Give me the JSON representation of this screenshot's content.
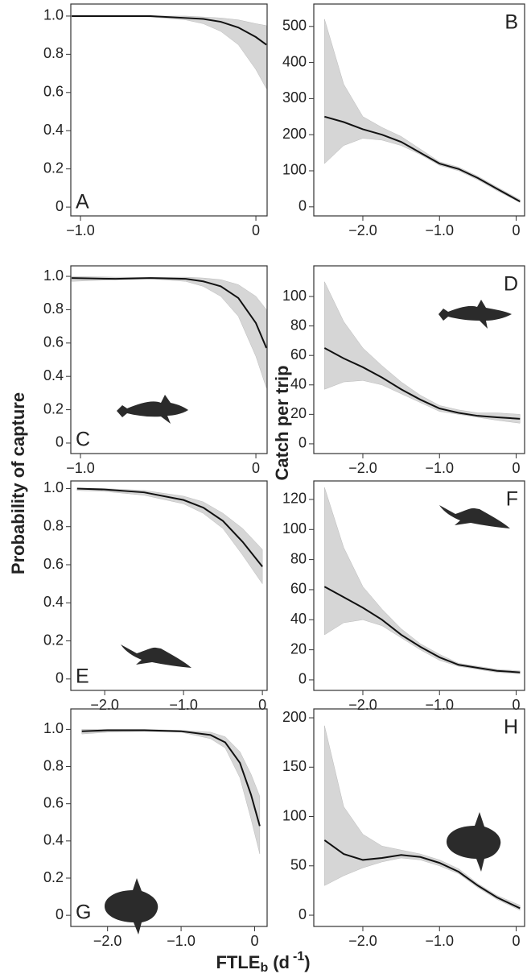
{
  "ylabel_left": "Probability of capture",
  "ylabel_right": "Catch per trip",
  "xlabel": {
    "main": "FTLE",
    "sub": "b",
    "open": "(d",
    "sup": "-1",
    "close": ")"
  },
  "chart_data": [
    {
      "type": "line",
      "annotation": "A",
      "color": "#111111",
      "band_color": "#d6d6d6",
      "xlim": [
        -1.055,
        0.064
      ],
      "ylim": [
        -0.046,
        1.063
      ],
      "xticks": [
        {
          "value": -1,
          "label": "−1.0"
        },
        0
      ],
      "yticks": [
        0,
        0.2,
        0.4,
        0.6,
        0.8,
        {
          "value": 1,
          "label": "1.0"
        }
      ],
      "x": [
        -1.05,
        -0.8,
        -0.6,
        -0.4,
        -0.3,
        -0.2,
        -0.1,
        0,
        0.06
      ],
      "values": [
        1,
        1,
        1,
        0.99,
        0.985,
        0.97,
        0.94,
        0.89,
        0.85
      ],
      "lower": [
        1,
        1,
        0.995,
        0.98,
        0.96,
        0.92,
        0.85,
        0.72,
        0.62
      ],
      "upper": [
        1,
        1,
        1,
        1,
        0.995,
        0.99,
        0.98,
        0.96,
        0.95
      ]
    },
    {
      "type": "line",
      "annotation": "B",
      "color": "#111111",
      "band_color": "#d6d6d6",
      "xlim": [
        -2.64,
        0.11
      ],
      "ylim": [
        -25,
        562
      ],
      "xticks": [
        {
          "value": -2,
          "label": "−2.0"
        },
        {
          "value": -1,
          "label": "−1.0"
        },
        0
      ],
      "yticks": [
        0,
        100,
        200,
        300,
        400,
        500
      ],
      "x": [
        -2.5,
        -2.25,
        -2,
        -1.75,
        -1.5,
        -1.25,
        -1,
        -0.75,
        -0.5,
        -0.25,
        0.05
      ],
      "values": [
        250,
        235,
        215,
        200,
        180,
        150,
        120,
        105,
        80,
        50,
        15
      ],
      "lower": [
        120,
        170,
        190,
        185,
        170,
        145,
        115,
        100,
        75,
        45,
        12
      ],
      "upper": [
        520,
        340,
        250,
        220,
        195,
        160,
        125,
        110,
        85,
        55,
        20
      ]
    },
    {
      "type": "line",
      "annotation": "C",
      "color": "#111111",
      "band_color": "#d6d6d6",
      "xlim": [
        -1.055,
        0.064
      ],
      "ylim": [
        -0.063,
        1.063
      ],
      "xticks": [
        {
          "value": -1,
          "label": "−1.0"
        },
        0
      ],
      "yticks": [
        0,
        0.2,
        0.4,
        0.6,
        0.8,
        {
          "value": 1,
          "label": "1.0"
        }
      ],
      "x": [
        -1.05,
        -0.8,
        -0.6,
        -0.4,
        -0.3,
        -0.2,
        -0.1,
        0,
        0.06
      ],
      "values": [
        0.99,
        0.985,
        0.99,
        0.985,
        0.97,
        0.94,
        0.87,
        0.72,
        0.57
      ],
      "lower": [
        0.97,
        0.98,
        0.985,
        0.97,
        0.94,
        0.88,
        0.76,
        0.52,
        0.33
      ],
      "upper": [
        1,
        0.995,
        0.995,
        0.995,
        0.99,
        0.98,
        0.95,
        0.88,
        0.8
      ]
    },
    {
      "type": "line",
      "annotation": "D",
      "color": "#111111",
      "band_color": "#d6d6d6",
      "xlim": [
        -2.64,
        0.11
      ],
      "ylim": [
        -6.6,
        120.8
      ],
      "xticks": [
        {
          "value": -2,
          "label": "−2.0"
        },
        {
          "value": -1,
          "label": "−1.0"
        },
        0
      ],
      "yticks": [
        0,
        20,
        40,
        60,
        80,
        100
      ],
      "x": [
        -2.5,
        -2.25,
        -2,
        -1.75,
        -1.5,
        -1.25,
        -1,
        -0.75,
        -0.5,
        -0.25,
        0.05
      ],
      "values": [
        65,
        58,
        52,
        45,
        37,
        30,
        24,
        21,
        19,
        18,
        17
      ],
      "lower": [
        37,
        42,
        43,
        40,
        34,
        28,
        22,
        20,
        18,
        16,
        14
      ],
      "upper": [
        110,
        83,
        65,
        53,
        42,
        33,
        26,
        23,
        21,
        21,
        20
      ]
    },
    {
      "type": "line",
      "annotation": "E",
      "color": "#111111",
      "band_color": "#d6d6d6",
      "xlim": [
        -2.43,
        0.06
      ],
      "ylim": [
        -0.06,
        1.04
      ],
      "xticks": [
        {
          "value": -2,
          "label": "−2.0"
        },
        {
          "value": -1,
          "label": "−1.0"
        },
        0
      ],
      "yticks": [
        0,
        0.2,
        0.4,
        0.6,
        0.8,
        {
          "value": 1,
          "label": "1.0"
        }
      ],
      "x": [
        -2.35,
        -2,
        -1.5,
        -1,
        -0.75,
        -0.5,
        -0.25,
        0
      ],
      "values": [
        1,
        0.995,
        0.98,
        0.94,
        0.9,
        0.83,
        0.72,
        0.59
      ],
      "lower": [
        0.99,
        0.985,
        0.965,
        0.92,
        0.87,
        0.79,
        0.65,
        0.5
      ],
      "upper": [
        1,
        1,
        0.99,
        0.96,
        0.93,
        0.87,
        0.79,
        0.68
      ]
    },
    {
      "type": "line",
      "annotation": "F",
      "color": "#111111",
      "band_color": "#d6d6d6",
      "xlim": [
        -2.64,
        0.11
      ],
      "ylim": [
        -7,
        132.3
      ],
      "xticks": [
        {
          "value": -2,
          "label": "−2.0"
        },
        {
          "value": -1,
          "label": "−1.0"
        },
        0
      ],
      "yticks": [
        0,
        20,
        40,
        60,
        80,
        100,
        120
      ],
      "x": [
        -2.5,
        -2.25,
        -2,
        -1.75,
        -1.5,
        -1.25,
        -1,
        -0.75,
        -0.5,
        -0.25,
        0.05
      ],
      "values": [
        62,
        55,
        48,
        40,
        30,
        22,
        15,
        10,
        8,
        6,
        5
      ],
      "lower": [
        30,
        38,
        40,
        36,
        28,
        20,
        13,
        9,
        7,
        5,
        4
      ],
      "upper": [
        128,
        88,
        62,
        47,
        34,
        24,
        17,
        11,
        9,
        7,
        6
      ]
    },
    {
      "type": "line",
      "annotation": "G",
      "color": "#111111",
      "band_color": "#d6d6d6",
      "xlim": [
        -2.5,
        0.17
      ],
      "ylim": [
        -0.06,
        1.11
      ],
      "xticks": [
        {
          "value": -2,
          "label": "−2.0"
        },
        {
          "value": -1,
          "label": "−1.0"
        },
        0
      ],
      "yticks": [
        0,
        0.2,
        0.4,
        0.6,
        0.8,
        {
          "value": 1,
          "label": "1.0"
        }
      ],
      "x": [
        -2.35,
        -2,
        -1.5,
        -1,
        -0.6,
        -0.4,
        -0.2,
        -0.05,
        0.07
      ],
      "values": [
        0.99,
        0.995,
        0.995,
        0.99,
        0.97,
        0.93,
        0.82,
        0.65,
        0.48
      ],
      "lower": [
        0.975,
        0.985,
        0.99,
        0.985,
        0.95,
        0.9,
        0.74,
        0.52,
        0.33
      ],
      "upper": [
        1,
        1,
        1,
        0.995,
        0.985,
        0.96,
        0.88,
        0.76,
        0.64
      ]
    },
    {
      "type": "line",
      "annotation": "H",
      "color": "#111111",
      "band_color": "#d6d6d6",
      "xlim": [
        -2.64,
        0.11
      ],
      "ylim": [
        -11.4,
        209
      ],
      "xticks": [
        {
          "value": -2,
          "label": "−2.0"
        },
        {
          "value": -1,
          "label": "−1.0"
        },
        0
      ],
      "yticks": [
        0,
        50,
        100,
        150,
        200
      ],
      "x": [
        -2.5,
        -2.25,
        -2,
        -1.75,
        -1.5,
        -1.25,
        -1,
        -0.75,
        -0.5,
        -0.25,
        0.05
      ],
      "values": [
        76,
        62,
        56,
        58,
        61,
        59,
        53,
        44,
        30,
        18,
        7
      ],
      "lower": [
        30,
        40,
        48,
        54,
        58,
        56,
        50,
        42,
        28,
        16,
        5
      ],
      "upper": [
        192,
        110,
        82,
        70,
        66,
        62,
        56,
        47,
        32,
        20,
        10
      ]
    }
  ]
}
